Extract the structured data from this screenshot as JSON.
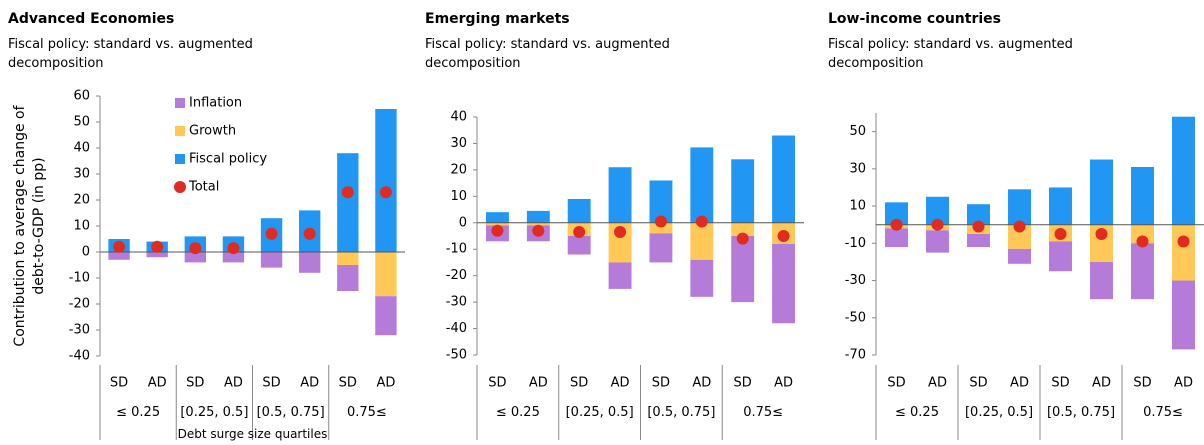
{
  "chart_data": [
    {
      "type": "bar",
      "stacked": true,
      "title": "Advanced Economies",
      "subtitle": "Fiscal policy: standard vs. augmented decomposition",
      "y_label": "Contribution to average change of debt-to-GDP (in pp)",
      "x_label": "Debt surge size quartiles",
      "categories": [
        "SD",
        "AD",
        "SD",
        "AD",
        "SD",
        "AD",
        "SD",
        "AD"
      ],
      "groups": [
        "≤ 0.25",
        "[0.25, 0.5]",
        "[0.5, 0.75]",
        "0.75≤"
      ],
      "ylim": [
        -40,
        60
      ],
      "yticks": [
        -40,
        -30,
        -20,
        -10,
        0,
        10,
        20,
        30,
        40,
        50,
        60
      ],
      "legend": "top-center",
      "series": [
        {
          "name": "Inflation",
          "color": "#b57bd9",
          "values": [
            -3,
            -2,
            -4,
            -4,
            -6,
            -8,
            -10,
            -15
          ]
        },
        {
          "name": "Growth",
          "color": "#ffc857",
          "values": [
            0,
            0,
            0,
            0,
            0,
            0,
            -5,
            -17
          ]
        },
        {
          "name": "Fiscal policy",
          "color": "#2196f3",
          "values": [
            5,
            4,
            6,
            6,
            13,
            16,
            38,
            55
          ]
        },
        {
          "name": "Total",
          "type": "scatter",
          "color": "#e02b20",
          "values": [
            2,
            2,
            1.5,
            1.5,
            7,
            7,
            23,
            23
          ]
        }
      ]
    },
    {
      "type": "bar",
      "stacked": true,
      "title": "Emerging markets",
      "subtitle": "Fiscal policy: standard vs. augmented decomposition",
      "categories": [
        "SD",
        "AD",
        "SD",
        "AD",
        "SD",
        "AD",
        "SD",
        "AD"
      ],
      "groups": [
        "≤ 0.25",
        "[0.25, 0.5]",
        "[0.5, 0.75]",
        "0.75≤"
      ],
      "ylim": [
        -50,
        40
      ],
      "yticks": [
        -50,
        -40,
        -30,
        -20,
        -10,
        0,
        10,
        20,
        30,
        40
      ],
      "series": [
        {
          "name": "Inflation",
          "color": "#b57bd9",
          "values": [
            -6,
            -6,
            -7,
            -10,
            -11,
            -14,
            -25,
            -30
          ]
        },
        {
          "name": "Growth",
          "color": "#ffc857",
          "values": [
            -1,
            -1,
            -5,
            -15,
            -4,
            -14,
            -5,
            -8
          ]
        },
        {
          "name": "Fiscal policy",
          "color": "#2196f3",
          "values": [
            4,
            4.5,
            9,
            21,
            16,
            28.5,
            24,
            33
          ]
        },
        {
          "name": "Total",
          "type": "scatter",
          "color": "#e02b20",
          "values": [
            -3,
            -3,
            -3.5,
            -3.5,
            0.5,
            0.5,
            -6,
            -5
          ]
        }
      ]
    },
    {
      "type": "bar",
      "stacked": true,
      "title": "Low-income countries",
      "subtitle": "Fiscal policy: standard vs. augmented decomposition",
      "categories": [
        "SD",
        "AD",
        "SD",
        "AD",
        "SD",
        "AD",
        "SD",
        "AD"
      ],
      "groups": [
        "≤ 0.25",
        "[0.25, 0.5]",
        "[0.5, 0.75]",
        "0.75≤"
      ],
      "ylim": [
        -70,
        60
      ],
      "yticks": [
        -70,
        -50,
        -30,
        -10,
        10,
        30,
        50
      ],
      "series": [
        {
          "name": "Inflation",
          "color": "#b57bd9",
          "values": [
            -10,
            -12,
            -7,
            -8,
            -16,
            -20,
            -30,
            -37
          ]
        },
        {
          "name": "Growth",
          "color": "#ffc857",
          "values": [
            -2,
            -3,
            -5,
            -13,
            -9,
            -20,
            -10,
            -30
          ]
        },
        {
          "name": "Fiscal policy",
          "color": "#2196f3",
          "values": [
            12,
            15,
            11,
            19,
            20,
            35,
            31,
            58
          ]
        },
        {
          "name": "Total",
          "type": "scatter",
          "color": "#e02b20",
          "values": [
            0,
            0,
            -1,
            -1,
            -5,
            -5,
            -9,
            -9
          ]
        }
      ]
    }
  ]
}
